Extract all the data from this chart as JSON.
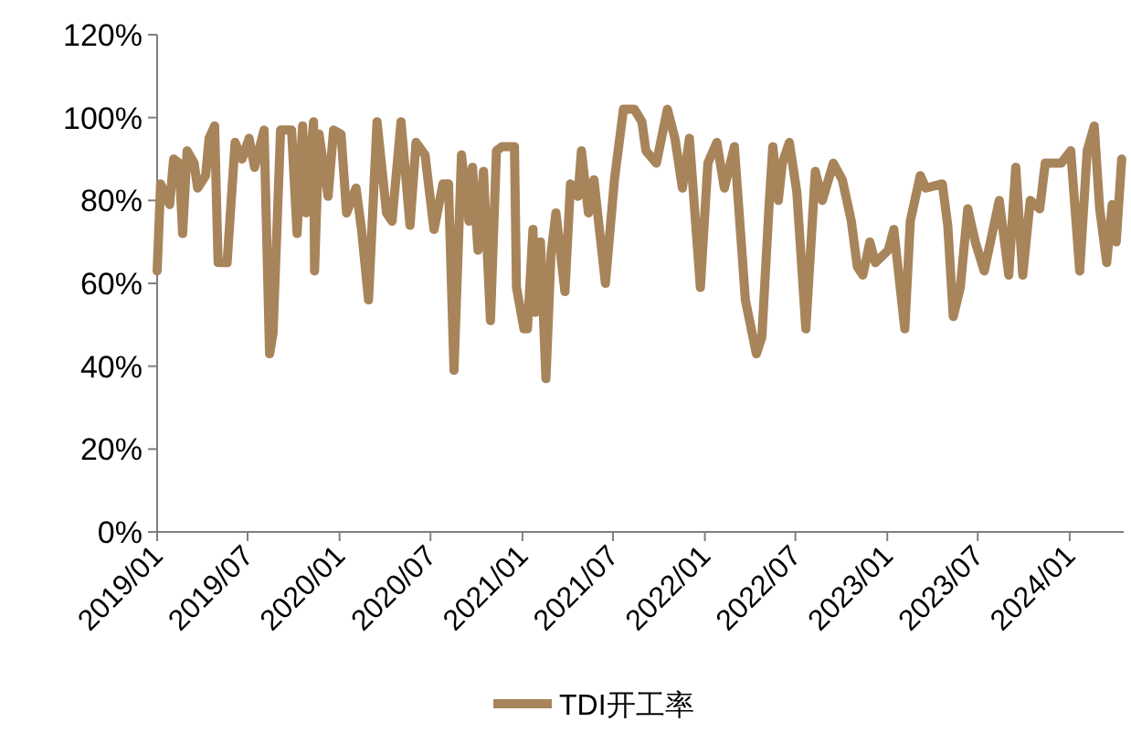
{
  "chart_data": {
    "type": "line",
    "legend": "bottom",
    "grid": false,
    "marker": "none",
    "line_style": "solid",
    "xlim": [
      "2019-01-01",
      "2024-04-18"
    ],
    "xticks": [
      {
        "value": "2019-01-01",
        "label": "2019/01"
      },
      {
        "value": "2019-07-01",
        "label": "2019/07"
      },
      {
        "value": "2020-01-01",
        "label": "2020/01"
      },
      {
        "value": "2020-07-01",
        "label": "2020/07"
      },
      {
        "value": "2021-01-01",
        "label": "2021/01"
      },
      {
        "value": "2021-07-01",
        "label": "2021/07"
      },
      {
        "value": "2022-01-01",
        "label": "2022/01"
      },
      {
        "value": "2022-07-01",
        "label": "2022/07"
      },
      {
        "value": "2023-01-01",
        "label": "2023/01"
      },
      {
        "value": "2023-07-01",
        "label": "2023/07"
      },
      {
        "value": "2024-01-01",
        "label": "2024/01"
      }
    ],
    "ylim": [
      0,
      120
    ],
    "yticks": [
      {
        "value": 0,
        "label": "0%"
      },
      {
        "value": 20,
        "label": "20%"
      },
      {
        "value": 40,
        "label": "40%"
      },
      {
        "value": 60,
        "label": "60%"
      },
      {
        "value": 80,
        "label": "80%"
      },
      {
        "value": 100,
        "label": "100%"
      },
      {
        "value": 120,
        "label": "120%"
      }
    ],
    "series": [
      {
        "name": "TDI开工率",
        "color": "#a8845a",
        "x": [
          "2019-01-01",
          "2019-01-08",
          "2019-01-26",
          "2019-02-03",
          "2019-02-14",
          "2019-02-21",
          "2019-03-02",
          "2019-03-16",
          "2019-03-23",
          "2019-04-08",
          "2019-04-15",
          "2019-04-26",
          "2019-05-03",
          "2019-05-21",
          "2019-06-06",
          "2019-06-20",
          "2019-07-04",
          "2019-07-15",
          "2019-08-03",
          "2019-08-14",
          "2019-08-21",
          "2019-09-05",
          "2019-09-27",
          "2019-10-08",
          "2019-10-19",
          "2019-10-26",
          "2019-11-10",
          "2019-11-12",
          "2019-11-21",
          "2019-12-09",
          "2019-12-20",
          "2020-01-04",
          "2020-01-15",
          "2020-02-03",
          "2020-02-14",
          "2020-02-28",
          "2020-03-16",
          "2020-04-04",
          "2020-04-15",
          "2020-05-03",
          "2020-05-21",
          "2020-06-02",
          "2020-06-20",
          "2020-07-08",
          "2020-07-26",
          "2020-08-06",
          "2020-08-17",
          "2020-09-01",
          "2020-09-16",
          "2020-09-23",
          "2020-10-04",
          "2020-10-15",
          "2020-10-29",
          "2020-11-10",
          "2020-11-21",
          "2020-12-16",
          "2020-12-20",
          "2021-01-04",
          "2021-01-11",
          "2021-01-22",
          "2021-01-26",
          "2021-02-06",
          "2021-02-17",
          "2021-02-27",
          "2021-03-09",
          "2021-03-27",
          "2021-04-07",
          "2021-04-22",
          "2021-04-29",
          "2021-05-13",
          "2021-05-24",
          "2021-06-16",
          "2021-07-04",
          "2021-07-22",
          "2021-08-13",
          "2021-08-28",
          "2021-09-05",
          "2021-09-26",
          "2021-10-18",
          "2021-11-02",
          "2021-11-17",
          "2021-12-01",
          "2021-12-23",
          "2022-01-07",
          "2022-01-25",
          "2022-02-09",
          "2022-03-01",
          "2022-03-23",
          "2022-04-14",
          "2022-04-25",
          "2022-05-10",
          "2022-05-17",
          "2022-05-28",
          "2022-06-05",
          "2022-06-19",
          "2022-07-04",
          "2022-07-22",
          "2022-08-10",
          "2022-08-24",
          "2022-09-15",
          "2022-10-03",
          "2022-10-21",
          "2022-11-02",
          "2022-11-13",
          "2022-11-27",
          "2022-12-08",
          "2023-01-03",
          "2023-01-14",
          "2023-02-05",
          "2023-02-16",
          "2023-03-08",
          "2023-03-19",
          "2023-04-21",
          "2023-05-02",
          "2023-05-13",
          "2023-05-27",
          "2023-06-11",
          "2023-06-26",
          "2023-07-14",
          "2023-08-13",
          "2023-09-01",
          "2023-09-15",
          "2023-09-29",
          "2023-10-14",
          "2023-11-02",
          "2023-11-13",
          "2023-12-15",
          "2024-01-03",
          "2024-01-21",
          "2024-02-05",
          "2024-02-19",
          "2024-03-01",
          "2024-03-15",
          "2024-03-26",
          "2024-04-03",
          "2024-04-14"
        ],
        "values": [
          63,
          84,
          79,
          90,
          89,
          72,
          92,
          89,
          83,
          86,
          95,
          98,
          65,
          65,
          94,
          90,
          95,
          88,
          97,
          43,
          48,
          97,
          97,
          72,
          98,
          77,
          99,
          63,
          96,
          81,
          97,
          96,
          77,
          83,
          73,
          56,
          99,
          77,
          75,
          99,
          74,
          94,
          91,
          73,
          84,
          84,
          39,
          91,
          75,
          88,
          68,
          87,
          51,
          92,
          93,
          93,
          59,
          49,
          49,
          73,
          53,
          70,
          37,
          67,
          77,
          58,
          84,
          81,
          92,
          77,
          85,
          60,
          85,
          102,
          102,
          99,
          92,
          89,
          102,
          95,
          83,
          95,
          59,
          89,
          94,
          83,
          93,
          56,
          43,
          47,
          80,
          93,
          80,
          89,
          94,
          82,
          49,
          87,
          80,
          89,
          85,
          75,
          64,
          62,
          70,
          65,
          68,
          73,
          49,
          75,
          86,
          83,
          84,
          74,
          52,
          59,
          78,
          70,
          63,
          80,
          62,
          88,
          62,
          80,
          78,
          89,
          89,
          92,
          63,
          92,
          98,
          78,
          65,
          79,
          70,
          90
        ]
      }
    ]
  }
}
